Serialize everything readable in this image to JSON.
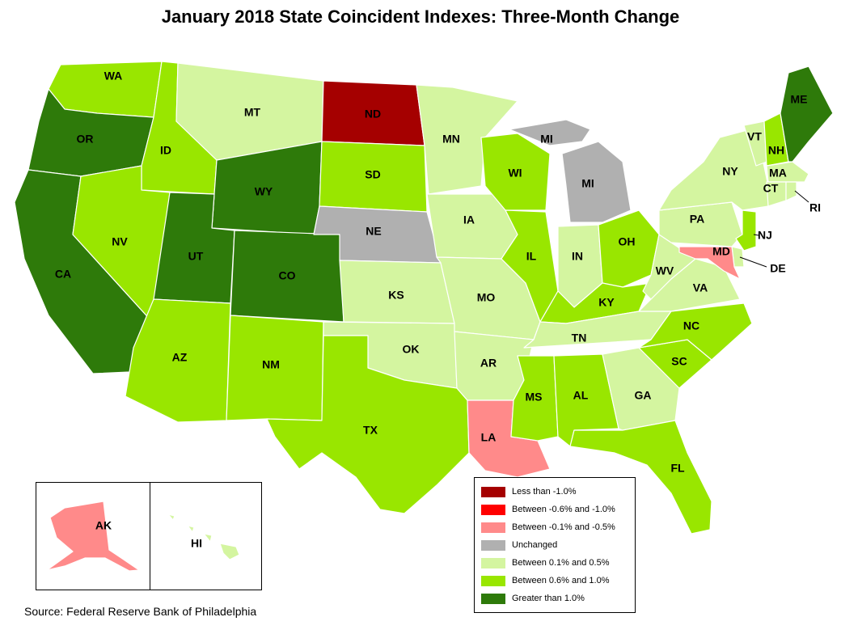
{
  "title": "January 2018 State Coincident Indexes: Three-Month Change",
  "source": "Source: Federal Reserve Bank of Philadelphia",
  "colors": {
    "less_than_neg1": "#A50000",
    "neg06_neg10": "#FF0000",
    "neg01_neg05": "#FF8A8A",
    "unchanged": "#B0B0B0",
    "pos01_pos05": "#D4F5A0",
    "pos06_pos10": "#99E600",
    "greater_than_1": "#2E7A0A"
  },
  "legend": [
    {
      "key": "less_than_neg1",
      "label": "Less than -1.0%"
    },
    {
      "key": "neg06_neg10",
      "label": "Between -0.6% and -1.0%"
    },
    {
      "key": "neg01_neg05",
      "label": "Between -0.1% and -0.5%"
    },
    {
      "key": "unchanged",
      "label": "Unchanged"
    },
    {
      "key": "pos01_pos05",
      "label": "Between 0.1% and 0.5%"
    },
    {
      "key": "pos06_pos10",
      "label": "Between 0.6% and 1.0%"
    },
    {
      "key": "greater_than_1",
      "label": "Greater than 1.0%"
    }
  ],
  "states": [
    {
      "abbr": "WA",
      "category": "pos06_pos10"
    },
    {
      "abbr": "OR",
      "category": "greater_than_1"
    },
    {
      "abbr": "CA",
      "category": "greater_than_1"
    },
    {
      "abbr": "ID",
      "category": "pos06_pos10"
    },
    {
      "abbr": "NV",
      "category": "pos06_pos10"
    },
    {
      "abbr": "MT",
      "category": "pos01_pos05"
    },
    {
      "abbr": "WY",
      "category": "greater_than_1"
    },
    {
      "abbr": "UT",
      "category": "greater_than_1"
    },
    {
      "abbr": "CO",
      "category": "greater_than_1"
    },
    {
      "abbr": "AZ",
      "category": "pos06_pos10"
    },
    {
      "abbr": "NM",
      "category": "pos06_pos10"
    },
    {
      "abbr": "ND",
      "category": "less_than_neg1"
    },
    {
      "abbr": "SD",
      "category": "pos06_pos10"
    },
    {
      "abbr": "NE",
      "category": "unchanged"
    },
    {
      "abbr": "KS",
      "category": "pos01_pos05"
    },
    {
      "abbr": "OK",
      "category": "pos01_pos05"
    },
    {
      "abbr": "TX",
      "category": "pos06_pos10"
    },
    {
      "abbr": "MN",
      "category": "pos01_pos05"
    },
    {
      "abbr": "IA",
      "category": "pos01_pos05"
    },
    {
      "abbr": "MO",
      "category": "pos01_pos05"
    },
    {
      "abbr": "AR",
      "category": "pos01_pos05"
    },
    {
      "abbr": "LA",
      "category": "neg01_neg05"
    },
    {
      "abbr": "WI",
      "category": "pos06_pos10"
    },
    {
      "abbr": "IL",
      "category": "pos06_pos10"
    },
    {
      "abbr": "MI",
      "category": "unchanged"
    },
    {
      "abbr": "IN",
      "category": "pos01_pos05"
    },
    {
      "abbr": "OH",
      "category": "pos06_pos10"
    },
    {
      "abbr": "KY",
      "category": "pos06_pos10"
    },
    {
      "abbr": "TN",
      "category": "pos01_pos05"
    },
    {
      "abbr": "MS",
      "category": "pos06_pos10"
    },
    {
      "abbr": "AL",
      "category": "pos06_pos10"
    },
    {
      "abbr": "GA",
      "category": "pos01_pos05"
    },
    {
      "abbr": "FL",
      "category": "pos06_pos10"
    },
    {
      "abbr": "SC",
      "category": "pos06_pos10"
    },
    {
      "abbr": "NC",
      "category": "pos06_pos10"
    },
    {
      "abbr": "VA",
      "category": "pos01_pos05"
    },
    {
      "abbr": "WV",
      "category": "pos01_pos05"
    },
    {
      "abbr": "PA",
      "category": "pos01_pos05"
    },
    {
      "abbr": "NY",
      "category": "pos01_pos05"
    },
    {
      "abbr": "VT",
      "category": "pos01_pos05"
    },
    {
      "abbr": "NH",
      "category": "pos06_pos10"
    },
    {
      "abbr": "ME",
      "category": "greater_than_1"
    },
    {
      "abbr": "MA",
      "category": "pos01_pos05"
    },
    {
      "abbr": "CT",
      "category": "pos01_pos05"
    },
    {
      "abbr": "RI",
      "category": "pos01_pos05"
    },
    {
      "abbr": "NJ",
      "category": "pos06_pos10"
    },
    {
      "abbr": "DE",
      "category": "pos01_pos05"
    },
    {
      "abbr": "MD",
      "category": "neg01_neg05"
    },
    {
      "abbr": "AK",
      "category": "neg01_neg05"
    },
    {
      "abbr": "HI",
      "category": "pos01_pos05"
    }
  ]
}
